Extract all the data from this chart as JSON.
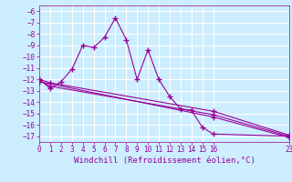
{
  "xlabel": "Windchill (Refroidissement éolien,°C)",
  "background_color": "#cceeff",
  "grid_color": "#ffffff",
  "line_color": "#990099",
  "xlim": [
    0,
    23
  ],
  "ylim": [
    -17.5,
    -5.5
  ],
  "yticks": [
    -6,
    -7,
    -8,
    -9,
    -10,
    -11,
    -12,
    -13,
    -14,
    -15,
    -16,
    -17
  ],
  "xticks": [
    0,
    1,
    2,
    3,
    4,
    5,
    6,
    7,
    8,
    9,
    10,
    11,
    12,
    13,
    14,
    15,
    16,
    23
  ],
  "line1_x": [
    0,
    1,
    2,
    3,
    4,
    5,
    6,
    7,
    8,
    9,
    10,
    11,
    12,
    13,
    14,
    15,
    16,
    23
  ],
  "line1_y": [
    -12.0,
    -12.8,
    -12.2,
    -11.1,
    -9.0,
    -9.2,
    -8.3,
    -6.6,
    -8.5,
    -12.0,
    -9.4,
    -12.0,
    -13.5,
    -14.6,
    -14.7,
    -16.2,
    -16.8,
    -17.0
  ],
  "line2_x": [
    0,
    1,
    16,
    23
  ],
  "line2_y": [
    -12.0,
    -12.3,
    -14.8,
    -16.9
  ],
  "line3_x": [
    0,
    1,
    16,
    23
  ],
  "line3_y": [
    -12.1,
    -12.6,
    -15.1,
    -17.0
  ],
  "line4_x": [
    0,
    16,
    23
  ],
  "line4_y": [
    -12.2,
    -15.3,
    -17.1
  ],
  "marker": "+",
  "markersize": 4,
  "linewidth": 0.8,
  "tick_fontsize": 5.5,
  "label_fontsize": 6.5
}
